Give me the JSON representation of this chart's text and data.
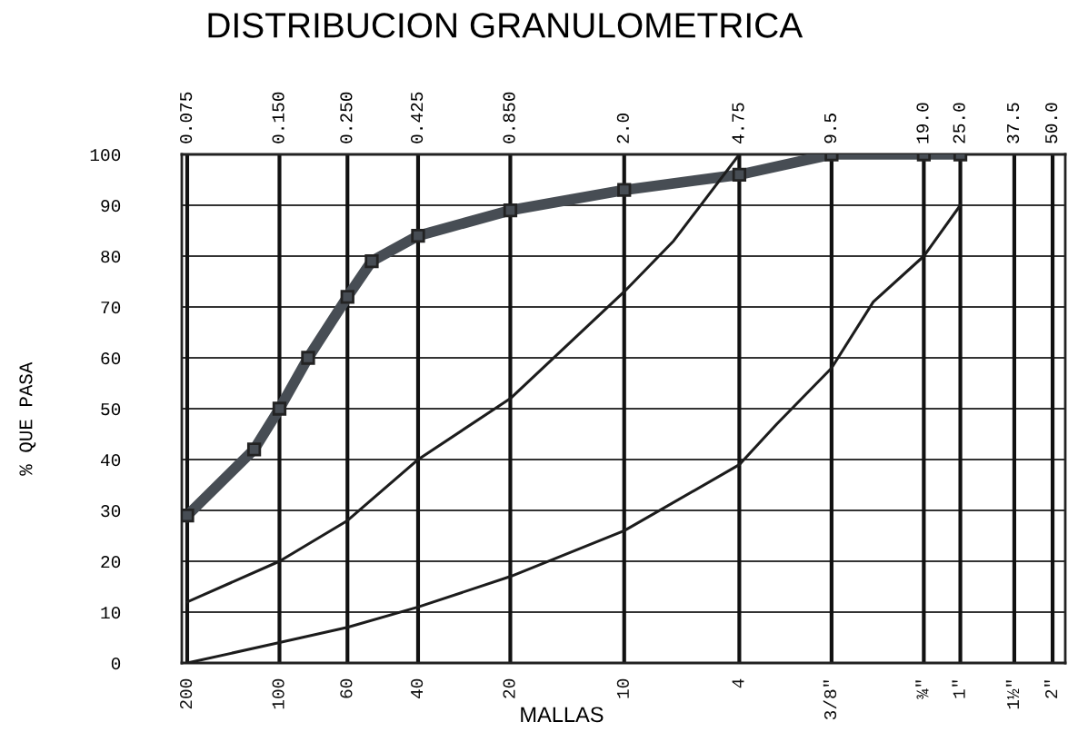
{
  "chart_data": {
    "type": "line",
    "title": "DISTRIBUCION GRANULOMETRICA",
    "xlabel": "MALLAS",
    "ylabel": "% QUE PASA",
    "log": "x",
    "xlim": [
      0.072,
      55
    ],
    "xticks": [
      0.075,
      {
        "value": 0.15,
        "label": "0.150"
      },
      {
        "value": 0.25,
        "label": "0.250"
      },
      0.425,
      {
        "value": 0.85,
        "label": "0.850"
      },
      {
        "value": 2,
        "label": "2.0"
      },
      4.75,
      9.5,
      {
        "value": 19,
        "label": "19.0"
      },
      {
        "value": 25,
        "label": "25.0"
      },
      37.5,
      {
        "value": 50,
        "label": "50.0"
      }
    ],
    "ylim": [
      0,
      100
    ],
    "yticks": [
      0,
      10,
      20,
      30,
      40,
      50,
      60,
      70,
      80,
      90,
      100
    ],
    "grid": "y",
    "ref_lines": [
      {
        "axis": "x",
        "value": 0.075,
        "color": "#111111"
      },
      {
        "axis": "x",
        "value": 0.15,
        "color": "#111111"
      },
      {
        "axis": "x",
        "value": 0.25,
        "color": "#111111"
      },
      {
        "axis": "x",
        "value": 0.425,
        "color": "#111111"
      },
      {
        "axis": "x",
        "value": 0.85,
        "color": "#111111"
      },
      {
        "axis": "x",
        "value": 2,
        "color": "#111111"
      },
      {
        "axis": "x",
        "value": 4.75,
        "color": "#111111"
      },
      {
        "axis": "x",
        "value": 9.5,
        "color": "#111111"
      },
      {
        "axis": "x",
        "value": 19,
        "color": "#111111"
      },
      {
        "axis": "x",
        "value": 25,
        "color": "#111111"
      },
      {
        "axis": "x",
        "value": 37.5,
        "color": "#111111"
      },
      {
        "axis": "x",
        "value": 50,
        "color": "#111111"
      }
    ],
    "annotations": [
      {
        "text": "200",
        "x": 0.075,
        "y": 0
      },
      {
        "text": "100",
        "x": 0.15,
        "y": 0
      },
      {
        "text": "60",
        "x": 0.25,
        "y": 0
      },
      {
        "text": "40",
        "x": 0.425,
        "y": 0
      },
      {
        "text": "20",
        "x": 0.85,
        "y": 0
      },
      {
        "text": "10",
        "x": 2,
        "y": 0
      },
      {
        "text": "4",
        "x": 4.75,
        "y": 0
      },
      {
        "text": "3/8\"",
        "x": 9.5,
        "y": 0
      },
      {
        "text": "¾\"",
        "x": 19,
        "y": 0
      },
      {
        "text": "1\"",
        "x": 25,
        "y": 0
      },
      {
        "text": "1½\"",
        "x": 37.5,
        "y": 0
      },
      {
        "text": "2\"",
        "x": 50,
        "y": 0
      }
    ],
    "series": [
      {
        "color": "#474d54",
        "marker": "square",
        "x": [
          0.075,
          0.124,
          0.15,
          0.186,
          0.25,
          0.3,
          0.425,
          0.85,
          2,
          4.75,
          9.5,
          19,
          25
        ],
        "values": [
          29,
          42,
          50,
          60,
          72,
          79,
          84,
          89,
          93,
          96,
          100,
          100,
          100
        ]
      },
      {
        "color": "#1c1c1c",
        "x": [
          0.075,
          0.15,
          0.25,
          0.425,
          0.85,
          2,
          2.9,
          4.75
        ],
        "values": [
          12,
          20,
          28,
          40,
          52,
          73,
          83,
          100
        ]
      },
      {
        "color": "#1c1c1c",
        "x": [
          0.075,
          0.15,
          0.25,
          0.425,
          0.85,
          2,
          4.75,
          6.3,
          9.5,
          13,
          19,
          25
        ],
        "values": [
          0,
          4,
          7,
          11,
          17,
          26,
          39,
          47,
          58,
          71,
          80,
          90
        ]
      }
    ]
  }
}
